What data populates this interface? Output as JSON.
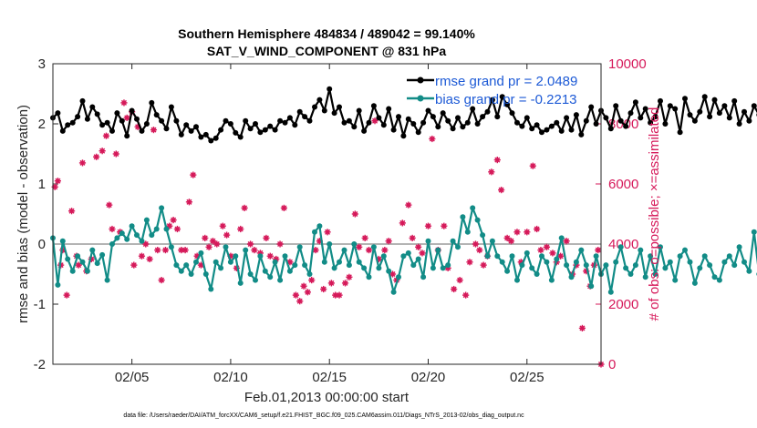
{
  "chart_data": {
    "type": "line",
    "title": "Southern Hemisphere 484834 / 489042 = 99.140%",
    "subtitle": "SAT_V_WIND_COMPONENT @ 831 hPa",
    "xlabel": "Feb.01,2013 00:00:00 start",
    "ylabel": "rmse and bias (model - observation)",
    "y2label": "# of obs: o=possible; ×=assimilated",
    "footnote": "data file: /Users/raeder/DAI/ATM_forcXX/CAM6_setup/f.e21.FHIST_BGC.f09_025.CAM6assim.011/Diags_NTrS_2013-02/obs_diag_output.nc",
    "x_range": [
      1,
      28.75
    ],
    "x_ticks": [
      5,
      10,
      15,
      20,
      25
    ],
    "x_tick_labels": [
      "02/05",
      "02/10",
      "02/15",
      "02/20",
      "02/25"
    ],
    "ylim": [
      -2,
      3
    ],
    "y_ticks": [
      -2,
      -1,
      0,
      1,
      2,
      3
    ],
    "y2lim": [
      0,
      10000
    ],
    "y2_ticks": [
      0,
      2000,
      4000,
      6000,
      8000,
      10000
    ],
    "x_step_days": 0.25,
    "legend_position": "top-right",
    "legend": [
      "rmse grand pr = 2.0489",
      "bias grand pr = -0.2213"
    ],
    "series": [
      {
        "name": "rmse grand pr = 2.0489",
        "color": "#000000",
        "axis": "left",
        "values": [
          2.1,
          2.18,
          1.88,
          1.98,
          2.02,
          2.12,
          2.38,
          2.08,
          2.28,
          2.16,
          1.98,
          2.02,
          1.88,
          2.18,
          2.05,
          1.8,
          2.22,
          2.08,
          1.88,
          2.0,
          2.35,
          2.15,
          2.05,
          1.92,
          2.28,
          2.05,
          1.82,
          1.98,
          1.88,
          1.95,
          1.78,
          1.82,
          1.72,
          1.76,
          1.9,
          2.05,
          2.0,
          1.85,
          1.78,
          2.05,
          1.92,
          2.0,
          1.86,
          1.9,
          1.96,
          1.9,
          2.05,
          2.02,
          2.1,
          1.98,
          2.2,
          2.12,
          2.05,
          2.28,
          2.4,
          2.22,
          2.58,
          2.18,
          2.28,
          2.02,
          2.05,
          1.95,
          2.22,
          1.88,
          2.02,
          2.3,
          2.1,
          1.98,
          2.25,
          1.9,
          2.12,
          1.8,
          2.08,
          2.0,
          1.86,
          2.02,
          2.22,
          2.12,
          1.95,
          2.18,
          2.05,
          1.92,
          2.1,
          1.95,
          2.02,
          2.25,
          2.0,
          2.12,
          2.2,
          2.4,
          2.12,
          2.45,
          2.32,
          2.18,
          2.02,
          1.96,
          2.1,
          1.92,
          1.98,
          1.86,
          1.9,
          1.96,
          2.02,
          1.88,
          2.1,
          1.9,
          2.15,
          1.82,
          2.05,
          2.28,
          2.0,
          2.22,
          2.1,
          1.92,
          2.3,
          2.05,
          1.96,
          2.18,
          2.36,
          2.1,
          2.25,
          2.02,
          2.12,
          2.38,
          2.0,
          2.3,
          2.25,
          1.86,
          2.42,
          2.15,
          2.05,
          2.2,
          2.45,
          2.12,
          2.4,
          2.18,
          2.3,
          2.1,
          2.38,
          2.0,
          2.2,
          2.05,
          2.3,
          2.15,
          2.02,
          2.3,
          1.9,
          2.1,
          1.8,
          1.85,
          1.7,
          1.9,
          1.82,
          1.8,
          1.95,
          1.72,
          1.9,
          1.86,
          1.8,
          1.88,
          1.95,
          2.05,
          2.15,
          2.08,
          2.2,
          2.05,
          1.98,
          2.18,
          2.08,
          2.12
        ]
      },
      {
        "name": "bias grand pr = -0.2213",
        "color": "#128c87",
        "axis": "left",
        "values": [
          0.1,
          -0.68,
          0.05,
          -0.25,
          -0.45,
          -0.2,
          -0.3,
          -0.45,
          -0.1,
          -0.32,
          -0.18,
          -0.6,
          0.0,
          0.1,
          0.18,
          0.08,
          0.3,
          0.15,
          0.05,
          0.4,
          0.15,
          0.25,
          0.6,
          0.25,
          -0.05,
          -0.35,
          -0.45,
          -0.35,
          -0.5,
          -0.3,
          -0.15,
          -0.5,
          -0.75,
          -0.3,
          -0.4,
          -0.05,
          -0.3,
          -0.2,
          -0.65,
          -0.1,
          -0.5,
          -0.6,
          -0.2,
          -0.45,
          -0.55,
          -0.3,
          -0.6,
          -0.2,
          -0.45,
          -0.35,
          -0.05,
          -0.35,
          -0.5,
          0.2,
          0.3,
          -0.3,
          0.0,
          -0.4,
          -0.3,
          -0.1,
          -0.35,
          0.0,
          -0.3,
          -0.4,
          -0.55,
          -0.05,
          -0.4,
          -0.2,
          -0.45,
          -0.8,
          -0.55,
          -0.2,
          -0.15,
          -0.35,
          -0.25,
          -0.55,
          0.05,
          -0.4,
          -0.1,
          -0.4,
          -0.35,
          0.05,
          -0.05,
          0.45,
          0.2,
          0.6,
          0.4,
          0.15,
          -0.2,
          0.05,
          -0.2,
          -0.3,
          -0.45,
          -0.2,
          -0.6,
          -0.35,
          -0.15,
          -0.4,
          -0.5,
          -0.2,
          -0.3,
          -0.6,
          -0.25,
          0.1,
          -0.35,
          -0.55,
          -0.3,
          -0.1,
          -0.35,
          -0.7,
          -0.2,
          -0.5,
          -0.35,
          -0.8,
          -0.3,
          -0.05,
          -0.4,
          -0.5,
          -0.35,
          -0.1,
          -0.55,
          -0.2,
          -0.5,
          -0.05,
          -0.4,
          -0.3,
          -0.6,
          -0.2,
          -0.1,
          -0.3,
          -0.65,
          -0.4,
          -0.2,
          -0.35,
          -0.55,
          -0.6,
          -0.3,
          -0.2,
          -0.35,
          -0.05,
          -0.3,
          -0.45,
          0.2,
          -0.5,
          -0.6,
          -0.35,
          -0.55,
          -0.5,
          -0.2,
          -0.45,
          -0.4,
          -0.15,
          -0.6,
          -0.45,
          0.25,
          0.05,
          0.45,
          -0.05,
          -0.3,
          0.2,
          -0.1,
          -0.35,
          -0.55,
          -0.2,
          -0.35,
          -0.55,
          -0.5,
          -0.25,
          -0.4,
          -0.2,
          0.25
        ]
      },
      {
        "name": "# of obs possible",
        "color": "#d6195a",
        "axis": "right",
        "marker": "o",
        "x": [
          1.1,
          1.25,
          1.4,
          1.5,
          1.7,
          1.95,
          2.2,
          2.3,
          2.5,
          2.7,
          2.95,
          3.2,
          3.5,
          3.7,
          3.85,
          4.0,
          4.2,
          4.4,
          4.6,
          4.75,
          5.0,
          5.1,
          5.3,
          5.5,
          5.7,
          5.9,
          6.1,
          6.3,
          6.5,
          6.7,
          6.9,
          7.1,
          7.3,
          7.5,
          7.7,
          7.9,
          8.1,
          8.3,
          8.5,
          8.7,
          8.9,
          9.1,
          9.3,
          9.6,
          9.8,
          10.0,
          10.3,
          10.5,
          10.7,
          11.0,
          11.2,
          11.5,
          11.8,
          12.0,
          12.3,
          12.5,
          12.7,
          13.0,
          13.3,
          13.5,
          13.7,
          13.9,
          14.1,
          14.3,
          14.5,
          14.7,
          14.9,
          15.1,
          15.3,
          15.5,
          15.8,
          16.0,
          16.3,
          16.5,
          16.8,
          17.0,
          17.3,
          17.5,
          17.8,
          18.0,
          18.2,
          18.4,
          18.7,
          19.0,
          19.2,
          19.5,
          19.7,
          20.0,
          20.2,
          20.5,
          20.8,
          21.0,
          21.3,
          21.6,
          21.9,
          22.1,
          22.4,
          22.6,
          22.8,
          23.0,
          23.2,
          23.5,
          23.7,
          24.0,
          24.2,
          24.5,
          24.7,
          25.0,
          25.3,
          25.5,
          25.7,
          26.0,
          26.3,
          26.5,
          26.7,
          27.0,
          27.3,
          27.5,
          27.8,
          28.0,
          28.2,
          28.4,
          28.6,
          28.75
        ],
        "values": [
          5900,
          6100,
          3300,
          3800,
          2300,
          5100,
          3600,
          3300,
          6700,
          3100,
          3500,
          6900,
          7100,
          7600,
          5300,
          4500,
          7000,
          4400,
          8700,
          8200,
          8400,
          3300,
          7900,
          3600,
          4000,
          3500,
          7800,
          3800,
          2800,
          3800,
          4600,
          4800,
          4500,
          3800,
          3800,
          5400,
          6300,
          3600,
          3300,
          4200,
          3900,
          4100,
          4000,
          4600,
          4300,
          3600,
          3200,
          4500,
          5200,
          4000,
          3800,
          3700,
          4200,
          3600,
          3500,
          4000,
          5200,
          3400,
          2300,
          2100,
          2600,
          2400,
          2800,
          3800,
          4100,
          2500,
          4400,
          2700,
          2300,
          2300,
          2700,
          2900,
          5000,
          3900,
          4200,
          3800,
          8100,
          3500,
          3800,
          4100,
          3000,
          2800,
          4700,
          5300,
          4200,
          3900,
          3700,
          4600,
          7500,
          3800,
          4600,
          3200,
          2500,
          2800,
          2300,
          3400,
          4000,
          3800,
          3300,
          3600,
          6400,
          6800,
          5800,
          4200,
          4100,
          4400,
          3400,
          4400,
          6600,
          4500,
          3800,
          3900,
          3700,
          3400,
          3600,
          4100,
          3000,
          3300,
          1200,
          3100,
          2600,
          3300,
          3800,
          0
        ]
      }
    ]
  }
}
